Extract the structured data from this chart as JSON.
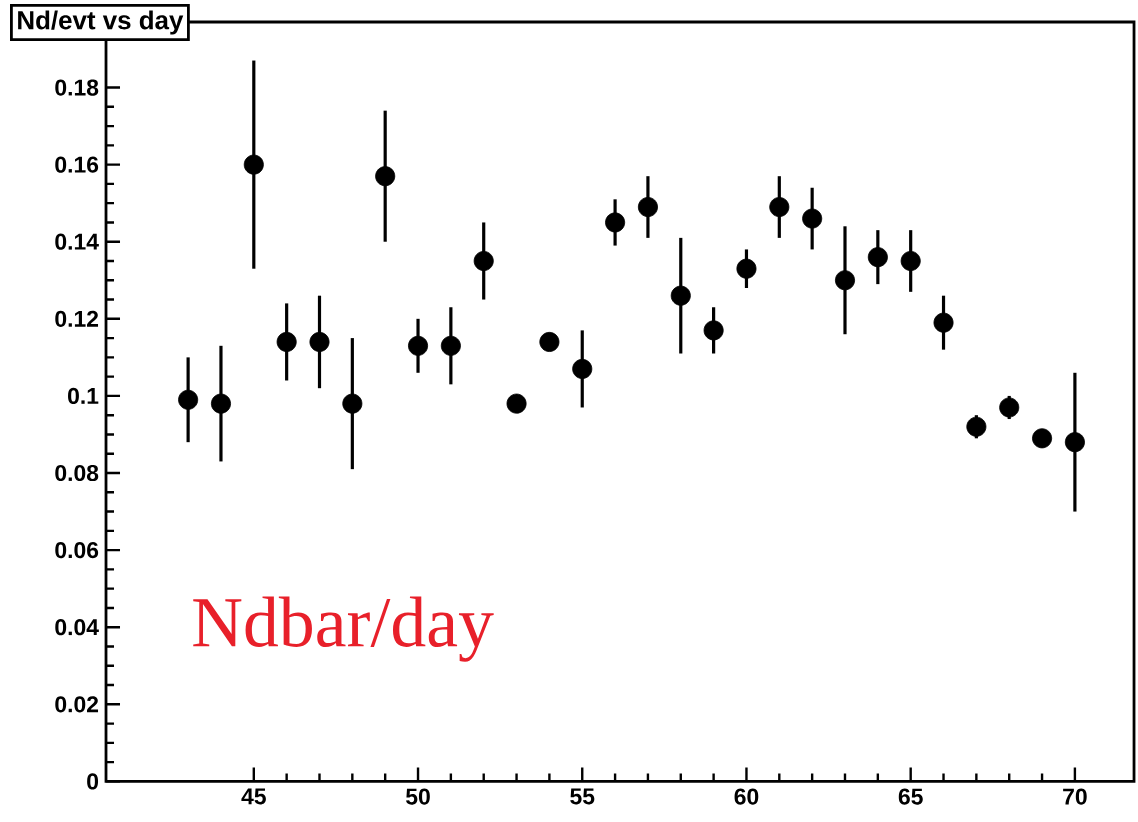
{
  "chart_data": {
    "type": "scatter",
    "title": "Nd/evt vs day",
    "annotations": [
      "Ndbar/day"
    ],
    "x": [
      43,
      44,
      45,
      46,
      47,
      48,
      49,
      50,
      51,
      52,
      53,
      54,
      55,
      56,
      57,
      58,
      59,
      60,
      61,
      62,
      63,
      64,
      65,
      66,
      67,
      68,
      69,
      70
    ],
    "series": [
      {
        "color": "#000000",
        "values": [
          0.099,
          0.098,
          0.16,
          0.114,
          0.114,
          0.098,
          0.157,
          0.113,
          0.113,
          0.135,
          0.098,
          0.114,
          0.107,
          0.145,
          0.149,
          0.126,
          0.117,
          0.133,
          0.149,
          0.146,
          0.13,
          0.136,
          0.135,
          0.119,
          0.092,
          0.097,
          0.089,
          0.088
        ],
        "errors": [
          0.011,
          0.015,
          0.027,
          0.01,
          0.012,
          0.017,
          0.017,
          0.007,
          0.01,
          0.01,
          0.002,
          0.002,
          0.01,
          0.006,
          0.008,
          0.015,
          0.006,
          0.005,
          0.008,
          0.008,
          0.014,
          0.007,
          0.008,
          0.007,
          0.003,
          0.003,
          0.002,
          0.018
        ]
      }
    ],
    "xlim": [
      40.5,
      71.8
    ],
    "ylim": [
      0,
      0.197
    ],
    "xticks": [
      45,
      50,
      55,
      60,
      65,
      70
    ],
    "yticks": [
      0,
      0.02,
      0.04,
      0.06,
      0.08,
      0.1,
      0.12,
      0.14,
      0.16,
      0.18
    ],
    "marker": "circle",
    "grid": false
  }
}
